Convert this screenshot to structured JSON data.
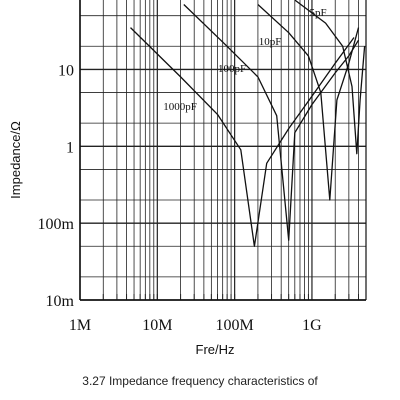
{
  "chart_data": {
    "type": "line",
    "title": "",
    "xlabel": "Fre/Hz",
    "ylabel": "Impedance/Ω",
    "xscale": "log",
    "yscale": "log",
    "xlim": [
      1000000,
      5000000000
    ],
    "ylim": [
      0.01,
      80
    ],
    "grid": true,
    "legend": "none",
    "x_ticks": [
      {
        "value": 1000000,
        "label": "1M"
      },
      {
        "value": 10000000,
        "label": "10M"
      },
      {
        "value": 100000000,
        "label": "100M"
      },
      {
        "value": 1000000000,
        "label": "1G"
      }
    ],
    "y_ticks": [
      {
        "value": 0.01,
        "label": "10m"
      },
      {
        "value": 0.1,
        "label": "100m"
      },
      {
        "value": 1,
        "label": "1"
      },
      {
        "value": 10,
        "label": "10"
      }
    ],
    "series": [
      {
        "name": "1000pF",
        "resonance_hz": 180000000,
        "min_impedance": 0.05,
        "points": [
          [
            4500000,
            35
          ],
          [
            20000000,
            8
          ],
          [
            60000000,
            2.6
          ],
          [
            120000000,
            0.9
          ],
          [
            180000000,
            0.05
          ],
          [
            260000000,
            0.6
          ],
          [
            500000000,
            1.7
          ],
          [
            1000000000,
            4.5
          ],
          [
            2000000000,
            12
          ],
          [
            3500000000,
            26
          ]
        ]
      },
      {
        "name": "100pF",
        "resonance_hz": 500000000,
        "min_impedance": 0.06,
        "points": [
          [
            22000000,
            70
          ],
          [
            80000000,
            20
          ],
          [
            200000000,
            8
          ],
          [
            350000000,
            2.5
          ],
          [
            500000000,
            0.06
          ],
          [
            600000000,
            1.5
          ],
          [
            1000000000,
            3.5
          ],
          [
            2000000000,
            9
          ],
          [
            3000000000,
            15
          ],
          [
            4000000000,
            24
          ]
        ]
      },
      {
        "name": "10pF",
        "resonance_hz": 1700000000,
        "min_impedance": 0.2,
        "points": [
          [
            200000000,
            70
          ],
          [
            500000000,
            30
          ],
          [
            900000000,
            15
          ],
          [
            1300000000,
            5
          ],
          [
            1700000000,
            0.2
          ],
          [
            2100000000,
            4
          ],
          [
            3000000000,
            12
          ],
          [
            4000000000,
            35
          ]
        ]
      },
      {
        "name": "5pF",
        "resonance_hz": 3800000000,
        "min_impedance": 0.8,
        "points": [
          [
            600000000,
            80
          ],
          [
            1500000000,
            40
          ],
          [
            2500000000,
            20
          ],
          [
            3300000000,
            6
          ],
          [
            3800000000,
            0.8
          ],
          [
            4200000000,
            4
          ],
          [
            4800000000,
            20
          ]
        ]
      }
    ]
  },
  "caption": {
    "line1": "3.27 Impedance frequency characteristics of",
    "line2": ""
  }
}
